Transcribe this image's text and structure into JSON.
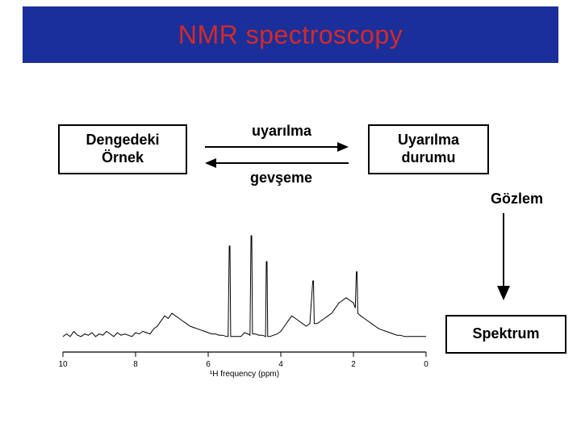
{
  "banner": {
    "bg_color": "#1a2f99",
    "title": "NMR spectroscopy",
    "title_color": "#d42a2a",
    "title_fontsize": 32
  },
  "diagram": {
    "box_left_label": "Dengedeki\nÖrnek",
    "box_right_label": "Uyarılma\ndurumu",
    "arrow_top_label": "uyarılma",
    "arrow_bottom_label": "gevşeme",
    "gozlem_label": "Gözlem",
    "spectrum_box_label": "Spektrum",
    "box_border_color": "#000000",
    "box_bg_color": "#ffffff",
    "label_fontsize": 18
  },
  "spectrum": {
    "type": "line",
    "xlabel": "¹H frequency (ppm)",
    "xlabel_fontsize": 10,
    "line_color": "#000000",
    "background_color": "#ffffff",
    "xlim": [
      10,
      0
    ],
    "ylim": [
      0,
      100
    ],
    "xticks": [
      10,
      8,
      6,
      4,
      2,
      0
    ],
    "baseline_y": 12,
    "profile": [
      [
        10.0,
        12
      ],
      [
        9.9,
        14
      ],
      [
        9.8,
        12
      ],
      [
        9.7,
        16
      ],
      [
        9.6,
        13
      ],
      [
        9.5,
        12
      ],
      [
        9.4,
        14
      ],
      [
        9.3,
        13
      ],
      [
        9.2,
        15
      ],
      [
        9.1,
        12
      ],
      [
        9.0,
        14
      ],
      [
        8.9,
        13
      ],
      [
        8.8,
        16
      ],
      [
        8.7,
        14
      ],
      [
        8.6,
        12
      ],
      [
        8.5,
        15
      ],
      [
        8.4,
        13
      ],
      [
        8.3,
        14
      ],
      [
        8.2,
        13
      ],
      [
        8.1,
        12
      ],
      [
        8.0,
        15
      ],
      [
        7.9,
        14
      ],
      [
        7.8,
        16
      ],
      [
        7.7,
        15
      ],
      [
        7.6,
        14
      ],
      [
        7.5,
        18
      ],
      [
        7.4,
        20
      ],
      [
        7.3,
        24
      ],
      [
        7.2,
        28
      ],
      [
        7.1,
        26
      ],
      [
        7.0,
        30
      ],
      [
        6.9,
        28
      ],
      [
        6.8,
        26
      ],
      [
        6.7,
        24
      ],
      [
        6.6,
        22
      ],
      [
        6.5,
        20
      ],
      [
        6.4,
        19
      ],
      [
        6.3,
        18
      ],
      [
        6.2,
        17
      ],
      [
        6.1,
        16
      ],
      [
        6.0,
        15
      ],
      [
        5.9,
        14
      ],
      [
        5.8,
        14
      ],
      [
        5.7,
        13
      ],
      [
        5.6,
        13
      ],
      [
        5.5,
        12
      ],
      [
        5.45,
        12
      ],
      [
        5.42,
        82
      ],
      [
        5.4,
        82
      ],
      [
        5.38,
        12
      ],
      [
        5.3,
        12
      ],
      [
        5.2,
        12
      ],
      [
        5.1,
        12
      ],
      [
        5.0,
        15
      ],
      [
        4.9,
        14
      ],
      [
        4.85,
        13
      ],
      [
        4.82,
        90
      ],
      [
        4.8,
        90
      ],
      [
        4.78,
        14
      ],
      [
        4.7,
        14
      ],
      [
        4.6,
        13
      ],
      [
        4.5,
        13
      ],
      [
        4.42,
        12
      ],
      [
        4.4,
        70
      ],
      [
        4.38,
        70
      ],
      [
        4.36,
        12
      ],
      [
        4.3,
        12
      ],
      [
        4.2,
        13
      ],
      [
        4.1,
        14
      ],
      [
        4.0,
        16
      ],
      [
        3.9,
        20
      ],
      [
        3.8,
        24
      ],
      [
        3.7,
        28
      ],
      [
        3.6,
        26
      ],
      [
        3.5,
        24
      ],
      [
        3.4,
        22
      ],
      [
        3.3,
        20
      ],
      [
        3.2,
        22
      ],
      [
        3.12,
        55
      ],
      [
        3.1,
        55
      ],
      [
        3.08,
        22
      ],
      [
        3.0,
        22
      ],
      [
        2.9,
        24
      ],
      [
        2.8,
        26
      ],
      [
        2.7,
        28
      ],
      [
        2.6,
        30
      ],
      [
        2.5,
        34
      ],
      [
        2.4,
        38
      ],
      [
        2.3,
        40
      ],
      [
        2.2,
        42
      ],
      [
        2.1,
        40
      ],
      [
        2.0,
        38
      ],
      [
        1.95,
        34
      ],
      [
        1.92,
        62
      ],
      [
        1.9,
        62
      ],
      [
        1.88,
        30
      ],
      [
        1.8,
        28
      ],
      [
        1.7,
        26
      ],
      [
        1.6,
        24
      ],
      [
        1.5,
        22
      ],
      [
        1.4,
        20
      ],
      [
        1.3,
        18
      ],
      [
        1.2,
        17
      ],
      [
        1.1,
        16
      ],
      [
        1.0,
        15
      ],
      [
        0.9,
        14
      ],
      [
        0.8,
        13
      ],
      [
        0.7,
        13
      ],
      [
        0.6,
        12
      ],
      [
        0.5,
        12
      ],
      [
        0.4,
        12
      ],
      [
        0.3,
        12
      ],
      [
        0.2,
        12
      ],
      [
        0.1,
        12
      ],
      [
        0.0,
        12
      ]
    ]
  }
}
